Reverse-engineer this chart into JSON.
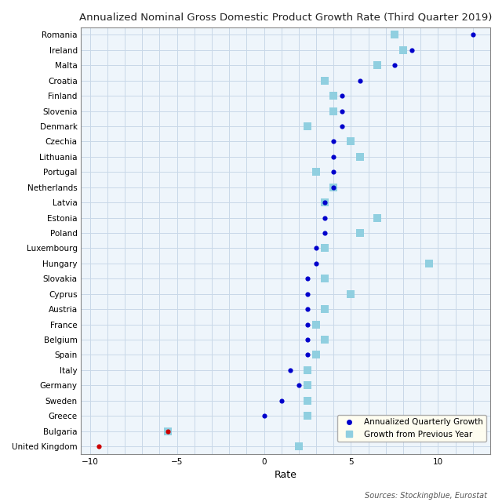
{
  "title": "Annualized Nominal Gross Domestic Product Growth Rate (Third Quarter 2019)",
  "xlabel": "Rate",
  "source_text": "Sources: Stockingblue, Eurostat",
  "countries": [
    "Romania",
    "Ireland",
    "Malta",
    "Croatia",
    "Finland",
    "Slovenia",
    "Denmark",
    "Czechia",
    "Lithuania",
    "Portugal",
    "Netherlands",
    "Latvia",
    "Estonia",
    "Poland",
    "Luxembourg",
    "Hungary",
    "Slovakia",
    "Cyprus",
    "Austria",
    "France",
    "Belgium",
    "Spain",
    "Italy",
    "Germany",
    "Sweden",
    "Greece",
    "Bulgaria",
    "United Kingdom"
  ],
  "chart_data": {
    "Romania": [
      12.0,
      7.5
    ],
    "Ireland": [
      8.5,
      8.0
    ],
    "Malta": [
      7.5,
      6.5
    ],
    "Croatia": [
      5.5,
      3.5
    ],
    "Finland": [
      4.5,
      4.0
    ],
    "Slovenia": [
      4.5,
      4.0
    ],
    "Denmark": [
      4.5,
      2.5
    ],
    "Czechia": [
      4.0,
      5.0
    ],
    "Lithuania": [
      4.0,
      5.5
    ],
    "Portugal": [
      4.0,
      3.0
    ],
    "Netherlands": [
      4.0,
      4.0
    ],
    "Latvia": [
      3.5,
      3.5
    ],
    "Estonia": [
      3.5,
      6.5
    ],
    "Poland": [
      3.5,
      5.5
    ],
    "Luxembourg": [
      3.0,
      3.5
    ],
    "Hungary": [
      3.0,
      9.5
    ],
    "Slovakia": [
      2.5,
      3.5
    ],
    "Cyprus": [
      2.5,
      5.0
    ],
    "Austria": [
      2.5,
      3.5
    ],
    "France": [
      2.5,
      3.0
    ],
    "Belgium": [
      2.5,
      3.5
    ],
    "Spain": [
      2.5,
      3.0
    ],
    "Italy": [
      1.5,
      2.5
    ],
    "Germany": [
      2.0,
      2.5
    ],
    "Sweden": [
      1.0,
      2.5
    ],
    "Greece": [
      0.0,
      2.5
    ],
    "Bulgaria": [
      -5.5,
      -5.5
    ],
    "United Kingdom": [
      -9.5,
      2.0
    ]
  },
  "red_countries": [
    "Bulgaria",
    "United Kingdom"
  ],
  "dot_color": "#0000cc",
  "dot_color_red": "#cc0000",
  "square_color": "#90cfe0",
  "xlim": [
    -10.5,
    13.0
  ],
  "xticks": [
    -10,
    -5,
    0,
    5,
    10
  ],
  "bg_color": "#ffffff",
  "plot_bg": "#eef5fb",
  "grid_color": "#c8d8e8",
  "title_fontsize": 9.5,
  "tick_fontsize": 7.5,
  "xlabel_fontsize": 9
}
